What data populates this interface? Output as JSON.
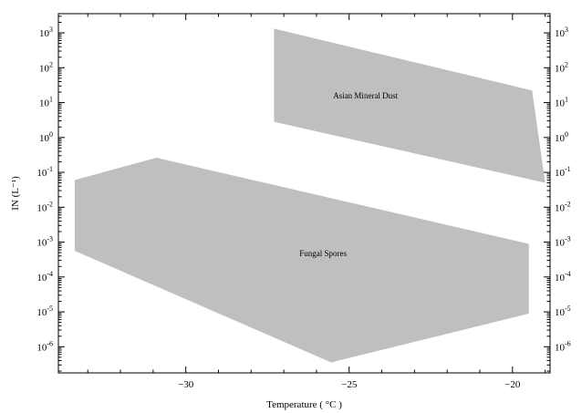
{
  "chart_data": {
    "type": "area",
    "xlabel": "Temperature ( °C )",
    "ylabel": "IN (L⁻¹)",
    "xlim": [
      -33.9,
      -18.85
    ],
    "ylim_log10": [
      -6.75,
      3.55
    ],
    "y_scale": "log",
    "x_ticks": [
      {
        "value": -30,
        "label": "−30"
      },
      {
        "value": -25,
        "label": "−25"
      },
      {
        "value": -20,
        "label": "−20"
      }
    ],
    "y_ticks": [
      {
        "exp": -6,
        "base": "10",
        "sup": "-6"
      },
      {
        "exp": -5,
        "base": "10",
        "sup": "-5"
      },
      {
        "exp": -4,
        "base": "10",
        "sup": "-4"
      },
      {
        "exp": -3,
        "base": "10",
        "sup": "-3"
      },
      {
        "exp": -2,
        "base": "10",
        "sup": "-2"
      },
      {
        "exp": -1,
        "base": "10",
        "sup": "-1"
      },
      {
        "exp": 0,
        "base": "10",
        "sup": "0"
      },
      {
        "exp": 1,
        "base": "10",
        "sup": "1"
      },
      {
        "exp": 2,
        "base": "10",
        "sup": "2"
      },
      {
        "exp": 3,
        "base": "10",
        "sup": "3"
      }
    ],
    "regions": [
      {
        "name": "Asian Mineral Dust",
        "color": "#bfbfbf",
        "label_at": {
          "x": -24.5,
          "y_log10": 1.12
        },
        "points": [
          {
            "x": -27.3,
            "y_log10": 3.12
          },
          {
            "x": -19.4,
            "y_log10": 1.35
          },
          {
            "x": -19.0,
            "y_log10": -1.3
          },
          {
            "x": -27.3,
            "y_log10": 0.45
          }
        ]
      },
      {
        "name": "Fungal Spores",
        "color": "#bfbfbf",
        "label_at": {
          "x": -25.8,
          "y_log10": -3.4
        },
        "points": [
          {
            "x": -33.4,
            "y_log10": -1.22
          },
          {
            "x": -30.9,
            "y_log10": -0.58
          },
          {
            "x": -19.5,
            "y_log10": -3.05
          },
          {
            "x": -19.5,
            "y_log10": -5.05
          },
          {
            "x": -25.55,
            "y_log10": -6.45
          },
          {
            "x": -33.4,
            "y_log10": -3.25
          }
        ]
      }
    ],
    "grid": false,
    "legend": "none"
  }
}
